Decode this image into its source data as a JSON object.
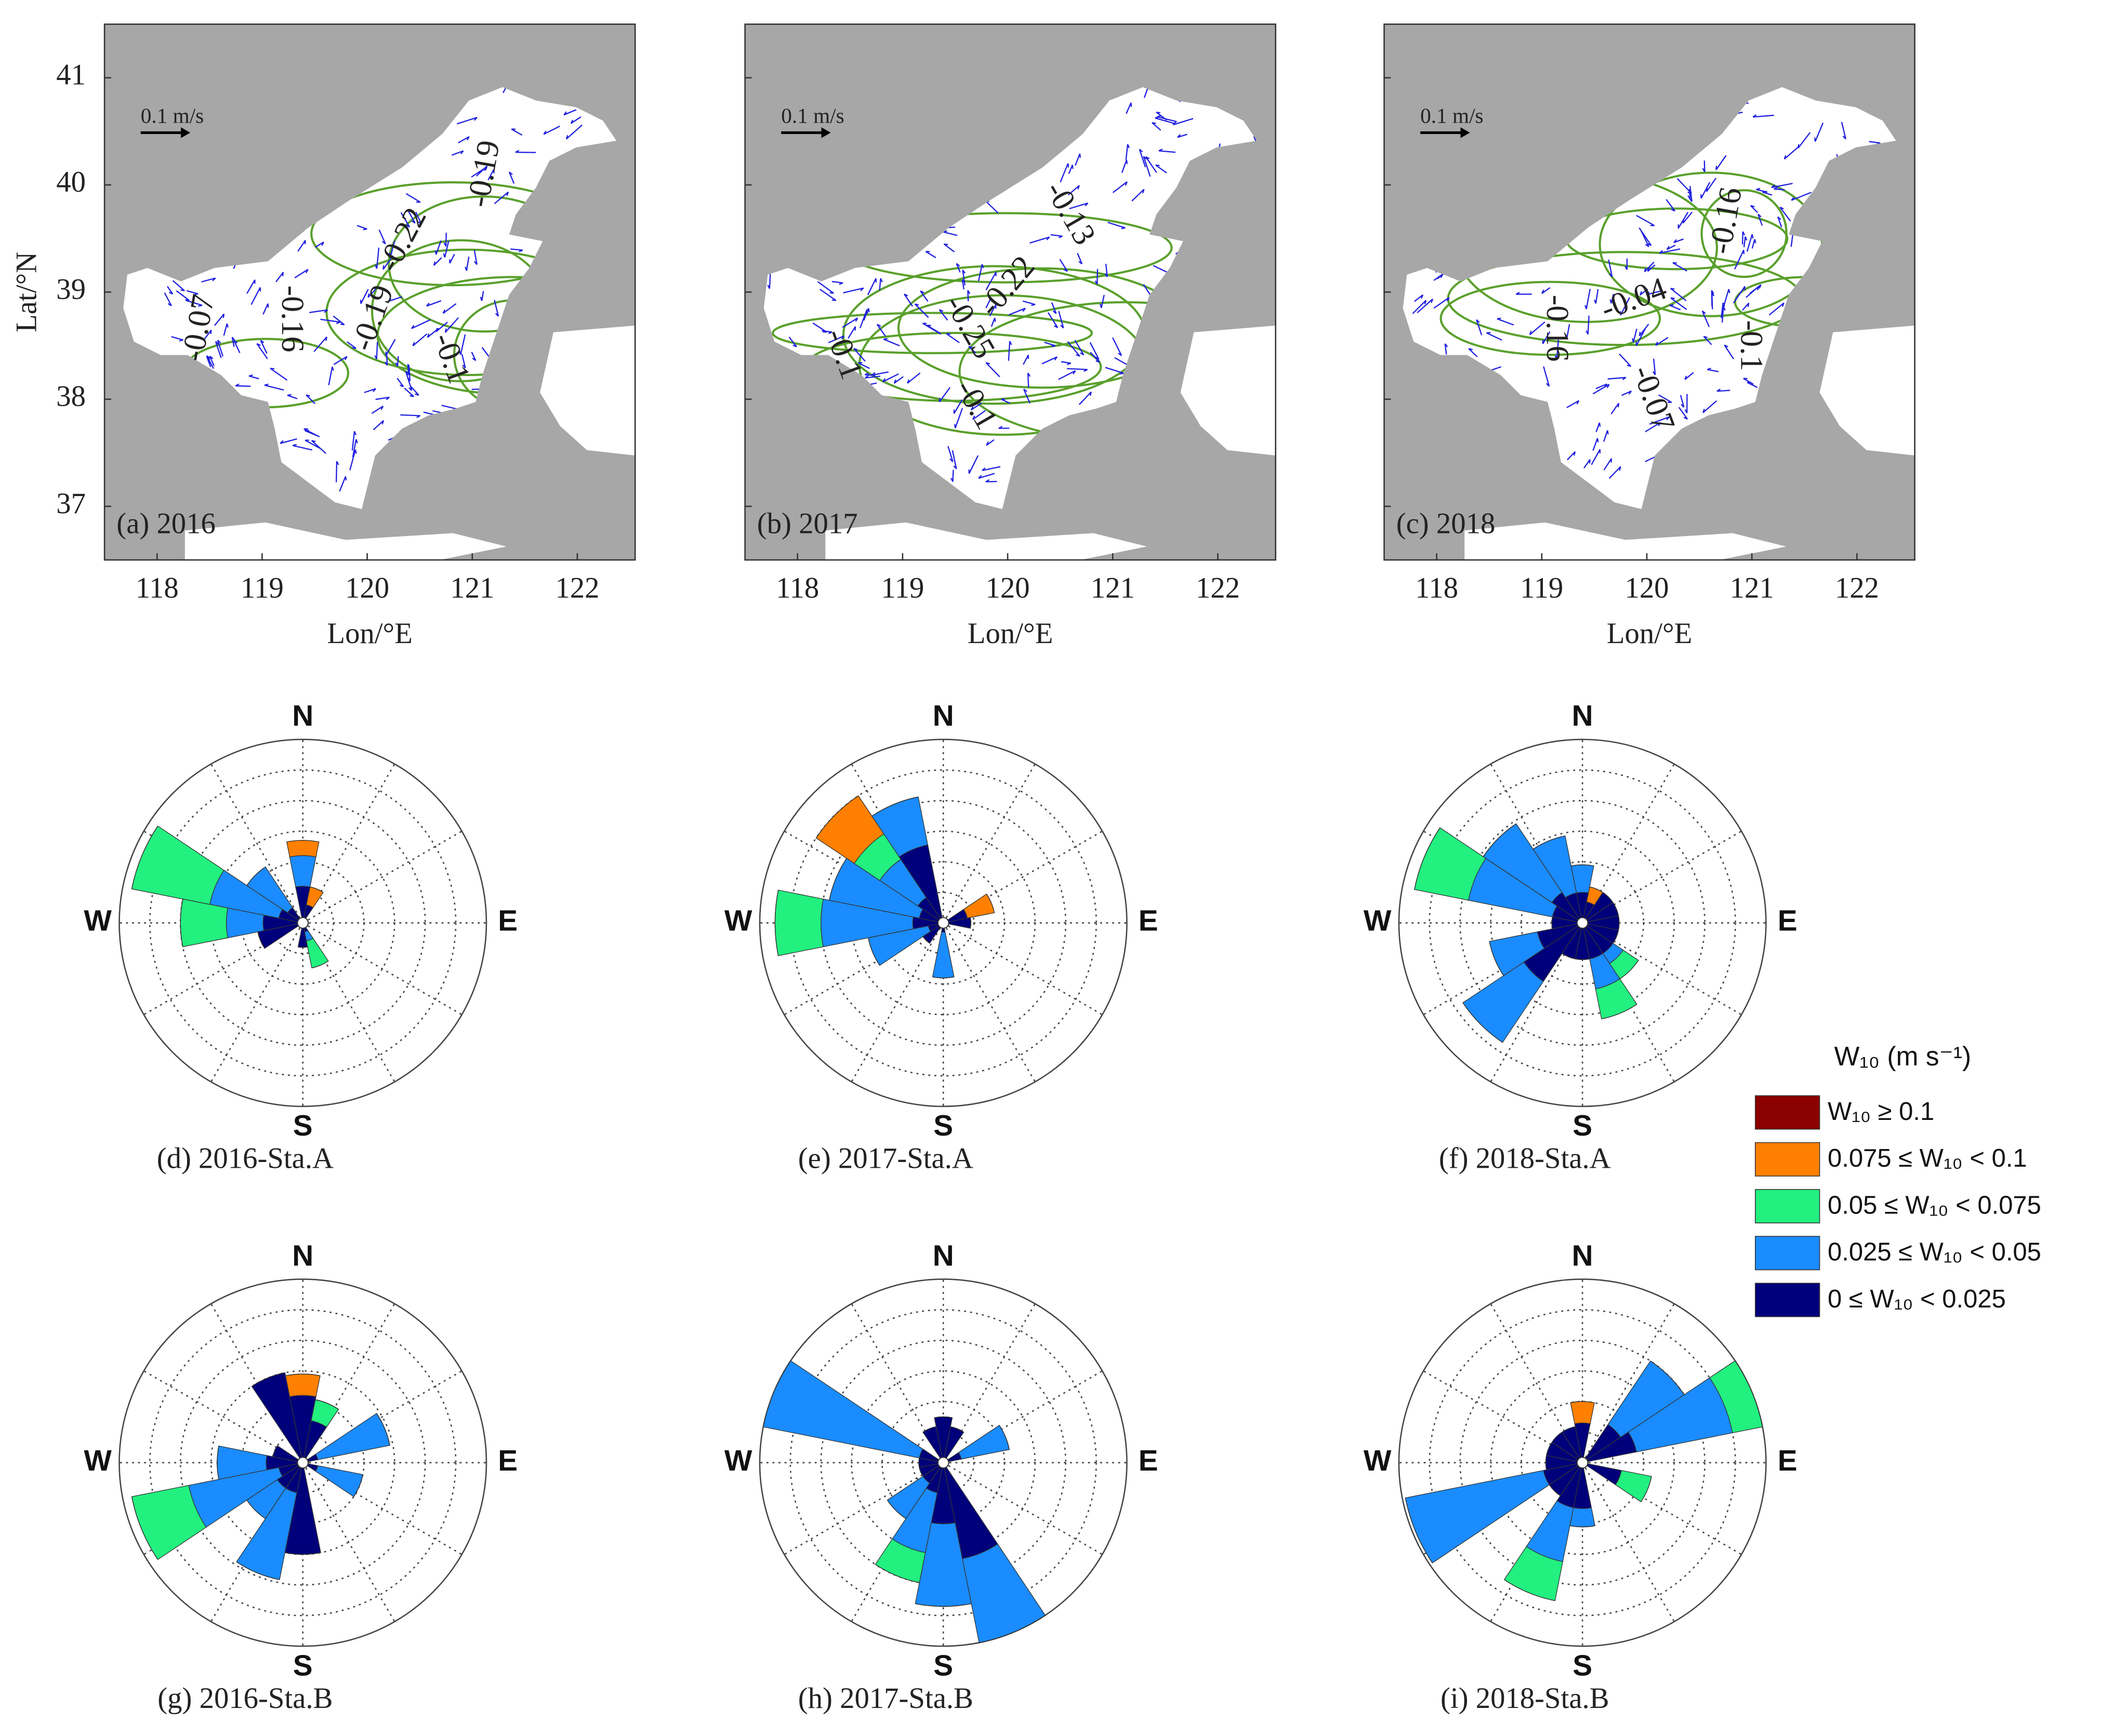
{
  "chart_data": [
    {
      "type": "map",
      "panel_label": "(a) 2016",
      "xlabel": "Lon/°E",
      "ylabel": "Lat/°N",
      "scale_label": "0.1 m/s",
      "xlim": [
        117.5,
        122.55
      ],
      "ylim": [
        36.5,
        41.5
      ],
      "xticks": [
        118,
        119,
        120,
        121,
        122
      ],
      "yticks": [
        37,
        38,
        39,
        40,
        41
      ],
      "contour_labels": [
        "-0.07",
        "-0.16",
        "-0.19",
        "-0.22",
        "-0.1",
        "-0.19"
      ]
    },
    {
      "type": "map",
      "panel_label": "(b) 2017",
      "xlabel": "Lon/°E",
      "scale_label": "0.1 m/s",
      "xlim": [
        117.5,
        122.55
      ],
      "ylim": [
        36.5,
        41.5
      ],
      "xticks": [
        118,
        119,
        120,
        121,
        122
      ],
      "yticks": [
        37,
        38,
        39,
        40,
        41
      ],
      "contour_labels": [
        "-0.13",
        "-0.22",
        "-0.25",
        "-0.1",
        "-0.1"
      ]
    },
    {
      "type": "map",
      "panel_label": "(c) 2018",
      "xlabel": "Lon/°E",
      "scale_label": "0.1 m/s",
      "xlim": [
        117.5,
        122.55
      ],
      "ylim": [
        36.5,
        41.5
      ],
      "xticks": [
        118,
        119,
        120,
        121,
        122
      ],
      "yticks": [
        37,
        38,
        39,
        40,
        41
      ],
      "contour_labels": [
        "-0.16",
        "-0.04",
        "-0.16",
        "-0.1",
        "-0.07"
      ]
    },
    {
      "type": "windrose",
      "title": "(d) 2016-Sta.A",
      "compass": [
        "N",
        "E",
        "S",
        "W"
      ],
      "rlim": [
        0,
        6
      ],
      "rticks": [
        1,
        2,
        3,
        4,
        5,
        6
      ],
      "sectors": [
        {
          "direction": 292.5,
          "values": [
            0,
            0,
            2.6,
            2.3,
            0.8
          ]
        },
        {
          "direction": 270,
          "values": [
            0,
            0,
            1.5,
            1.2,
            1.3
          ]
        },
        {
          "direction": 315,
          "values": [
            0,
            0,
            0,
            1.6,
            0.6
          ]
        },
        {
          "direction": 0,
          "values": [
            0,
            0.5,
            0,
            1.0,
            1.2
          ]
        },
        {
          "direction": 22.5,
          "values": [
            0,
            0.6,
            0,
            0,
            0.6
          ]
        },
        {
          "direction": 247.5,
          "values": [
            0,
            0,
            0,
            0,
            1.5
          ]
        },
        {
          "direction": 180,
          "values": [
            0,
            0,
            0,
            0,
            0.8
          ]
        },
        {
          "direction": 157.5,
          "values": [
            0,
            0,
            0.9,
            0.3,
            0.3
          ]
        }
      ]
    },
    {
      "type": "windrose",
      "title": "(e) 2017-Sta.A",
      "compass": [
        "N",
        "E",
        "S",
        "W"
      ],
      "rlim": [
        0,
        6
      ],
      "rticks": [
        1,
        2,
        3,
        4,
        5,
        6
      ],
      "sectors": [
        {
          "direction": 270,
          "values": [
            0,
            0,
            1.5,
            3.0,
            1.0
          ]
        },
        {
          "direction": 292.5,
          "values": [
            0,
            0,
            0,
            3.0,
            0.8
          ]
        },
        {
          "direction": 315,
          "values": [
            0,
            1.5,
            1.0,
            1.5,
            1.0
          ]
        },
        {
          "direction": 337.5,
          "values": [
            0,
            0,
            0,
            1.6,
            2.6
          ]
        },
        {
          "direction": 247.5,
          "values": [
            0,
            0,
            0,
            2.0,
            0.5
          ]
        },
        {
          "direction": 180,
          "values": [
            0,
            0,
            0,
            1.5,
            0.3
          ]
        },
        {
          "direction": 67.5,
          "values": [
            0,
            0.9,
            0,
            0,
            0.8
          ]
        },
        {
          "direction": 90,
          "values": [
            0,
            0,
            0,
            0,
            0.9
          ]
        },
        {
          "direction": 225,
          "values": [
            0,
            0,
            0,
            0,
            0.8
          ]
        }
      ]
    },
    {
      "type": "windrose",
      "title": "(f) 2018-Sta.A",
      "compass": [
        "N",
        "E",
        "S",
        "W"
      ],
      "rlim": [
        0,
        6
      ],
      "rticks": [
        1,
        2,
        3,
        4,
        5,
        6
      ],
      "sectors": [
        {
          "direction": 292.5,
          "values": [
            0,
            0,
            1.8,
            2.8,
            1.0
          ]
        },
        {
          "direction": 315,
          "values": [
            0,
            0,
            0,
            2.7,
            1.2
          ]
        },
        {
          "direction": 337.5,
          "values": [
            0,
            0,
            0,
            1.9,
            1.0
          ]
        },
        {
          "direction": 0,
          "values": [
            0,
            0,
            0,
            0.9,
            1.0
          ]
        },
        {
          "direction": 22.5,
          "values": [
            0,
            0.5,
            0,
            0,
            0.7
          ]
        },
        {
          "direction": 45,
          "values": [
            0,
            0,
            0,
            0,
            1.2
          ]
        },
        {
          "direction": 67.5,
          "values": [
            0,
            0,
            0,
            0,
            1.2
          ]
        },
        {
          "direction": 90,
          "values": [
            0,
            0,
            0,
            0,
            1.2
          ]
        },
        {
          "direction": 112.5,
          "values": [
            0,
            0,
            0,
            0,
            1.2
          ]
        },
        {
          "direction": 135,
          "values": [
            0,
            0,
            0.6,
            0.4,
            1.2
          ]
        },
        {
          "direction": 157.5,
          "values": [
            0,
            0,
            1.0,
            1.0,
            1.2
          ]
        },
        {
          "direction": 180,
          "values": [
            0,
            0,
            0,
            0,
            1.2
          ]
        },
        {
          "direction": 202.5,
          "values": [
            0,
            0,
            0,
            0,
            1.2
          ]
        },
        {
          "direction": 225,
          "values": [
            0,
            0,
            0,
            2.4,
            2.3
          ]
        },
        {
          "direction": 247.5,
          "values": [
            0,
            0,
            0,
            1.6,
            1.5
          ]
        },
        {
          "direction": 270,
          "values": [
            0,
            0,
            0,
            0,
            1.0
          ]
        }
      ]
    },
    {
      "type": "windrose",
      "title": "(g) 2016-Sta.B",
      "compass": [
        "N",
        "E",
        "S",
        "W"
      ],
      "rlim": [
        0,
        6
      ],
      "rticks": [
        1,
        2,
        3,
        4,
        5,
        6
      ],
      "sectors": [
        {
          "direction": 337.5,
          "values": [
            0,
            0,
            0,
            0,
            3.0
          ]
        },
        {
          "direction": 0,
          "values": [
            0,
            0.7,
            0,
            0,
            2.2
          ]
        },
        {
          "direction": 22.5,
          "values": [
            0,
            0,
            0.7,
            0,
            1.4
          ]
        },
        {
          "direction": 67.5,
          "values": [
            0,
            0,
            0,
            2.4,
            0.5
          ]
        },
        {
          "direction": 112.5,
          "values": [
            0,
            0,
            0,
            1.5,
            0.5
          ]
        },
        {
          "direction": 247.5,
          "values": [
            0,
            0,
            1.9,
            3.0,
            0.8
          ]
        },
        {
          "direction": 270,
          "values": [
            0,
            0,
            0,
            1.6,
            1.2
          ]
        },
        {
          "direction": 225,
          "values": [
            0,
            0,
            0,
            1.2,
            1.0
          ]
        },
        {
          "direction": 202.5,
          "values": [
            0,
            0,
            0,
            2.9,
            1.0
          ]
        },
        {
          "direction": 180,
          "values": [
            0,
            0,
            0,
            0,
            3.0
          ]
        },
        {
          "direction": 292.5,
          "values": [
            0,
            0,
            0,
            0,
            1.0
          ]
        }
      ]
    },
    {
      "type": "windrose",
      "title": "(h) 2017-Sta.B",
      "compass": [
        "N",
        "E",
        "S",
        "W"
      ],
      "rlim": [
        0,
        6
      ],
      "rticks": [
        1,
        2,
        3,
        4,
        5,
        6
      ],
      "sectors": [
        {
          "direction": 292.5,
          "values": [
            0,
            0,
            0,
            5.2,
            0.8
          ]
        },
        {
          "direction": 337.5,
          "values": [
            0,
            0,
            0,
            0,
            1.2
          ]
        },
        {
          "direction": 0,
          "values": [
            0,
            0,
            0,
            0,
            1.5
          ]
        },
        {
          "direction": 22.5,
          "values": [
            0,
            0,
            0,
            0,
            1.2
          ]
        },
        {
          "direction": 67.5,
          "values": [
            0,
            0,
            0,
            1.6,
            0.6
          ]
        },
        {
          "direction": 202.5,
          "values": [
            0,
            0,
            1.0,
            2.0,
            1.0
          ]
        },
        {
          "direction": 180,
          "values": [
            0,
            0,
            0,
            2.7,
            2.0
          ]
        },
        {
          "direction": 157.5,
          "values": [
            0,
            0,
            0,
            2.8,
            3.2
          ]
        },
        {
          "direction": 225,
          "values": [
            0,
            0,
            0,
            1.4,
            0.8
          ]
        },
        {
          "direction": 247.5,
          "values": [
            0,
            0,
            0,
            0,
            0.8
          ]
        },
        {
          "direction": 270,
          "values": [
            0,
            0,
            0,
            0,
            0.8
          ]
        }
      ]
    },
    {
      "type": "windrose",
      "title": "(i) 2018-Sta.B",
      "compass": [
        "N",
        "E",
        "S",
        "W"
      ],
      "rlim": [
        0,
        6
      ],
      "rticks": [
        1,
        2,
        3,
        4,
        5,
        6
      ],
      "sectors": [
        {
          "direction": 67.5,
          "values": [
            0,
            0,
            1.0,
            3.2,
            1.8
          ]
        },
        {
          "direction": 45,
          "values": [
            0,
            0,
            0,
            2.5,
            1.5
          ]
        },
        {
          "direction": 0,
          "values": [
            0,
            0.7,
            0,
            0,
            1.3
          ]
        },
        {
          "direction": 337.5,
          "values": [
            0,
            0,
            0,
            0,
            1.2
          ]
        },
        {
          "direction": 315,
          "values": [
            0,
            0,
            0,
            0,
            1.2
          ]
        },
        {
          "direction": 292.5,
          "values": [
            0,
            0,
            0,
            0,
            1.2
          ]
        },
        {
          "direction": 270,
          "values": [
            0,
            0,
            0,
            0,
            1.2
          ]
        },
        {
          "direction": 247.5,
          "values": [
            0,
            0,
            0,
            4.6,
            1.3
          ]
        },
        {
          "direction": 202.5,
          "values": [
            0,
            0,
            1.3,
            1.8,
            1.5
          ]
        },
        {
          "direction": 180,
          "values": [
            0,
            0,
            0,
            0.6,
            1.5
          ]
        },
        {
          "direction": 112.5,
          "values": [
            0,
            0,
            1.0,
            0,
            1.3
          ]
        },
        {
          "direction": 225,
          "values": [
            0,
            0,
            0,
            0,
            1.3
          ]
        }
      ]
    }
  ],
  "legend": {
    "title": "W₁₀ (m s⁻¹)",
    "items": [
      {
        "label": "W₁₀ ≥ 0.1",
        "color": "#8b0000"
      },
      {
        "label": "0.075 ≤ W₁₀ < 0.1",
        "color": "#ff8000"
      },
      {
        "label": "0.05 ≤ W₁₀ < 0.075",
        "color": "#22f07f"
      },
      {
        "label": "0.025 ≤ W₁₀ < 0.05",
        "color": "#1a8cff"
      },
      {
        "label": "0 ≤ W₁₀ < 0.025",
        "color": "#00007a"
      }
    ]
  }
}
